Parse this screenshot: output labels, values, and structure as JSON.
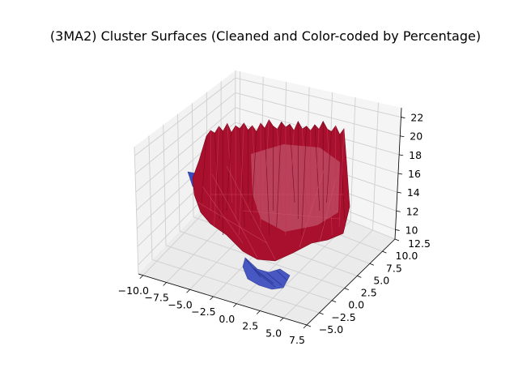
{
  "chart_data": {
    "type": "surface3d",
    "title": "(3MA2) Cluster Surfaces (Cleaned and Color-coded by Percentage)",
    "xlabel": "",
    "ylabel": "",
    "zlabel": "",
    "x_ticks": [
      "−10.0",
      "−7.5",
      "−5.0",
      "−2.5",
      "0.0",
      "2.5",
      "5.0",
      "7.5"
    ],
    "y_ticks": [
      "−5.0",
      "−2.5",
      "0.0",
      "2.5",
      "5.0",
      "7.5",
      "10.0",
      "12.5"
    ],
    "z_ticks": [
      "10",
      "12",
      "14",
      "16",
      "18",
      "20",
      "22"
    ],
    "xlim": [
      -10.5,
      7.5
    ],
    "ylim": [
      -5.0,
      12.5
    ],
    "zlim": [
      9.0,
      23.0
    ],
    "grid": true,
    "legend": "none",
    "surfaces": [
      {
        "cluster": "large",
        "color": "#a8102d",
        "x_range": [
          -8,
          5
        ],
        "y_range": [
          -3,
          12
        ],
        "z_range": [
          10,
          22.5
        ]
      },
      {
        "cluster": "small",
        "color": "#3b4cc0",
        "x_range": [
          0,
          4
        ],
        "y_range": [
          -4,
          -1
        ],
        "z_range": [
          6,
          9
        ]
      }
    ],
    "colors": {
      "red_surface": "#a8102d",
      "red_dark": "#7a0a1f",
      "blue_surface": "#3b4cc0",
      "blue_dark": "#26338a"
    }
  }
}
